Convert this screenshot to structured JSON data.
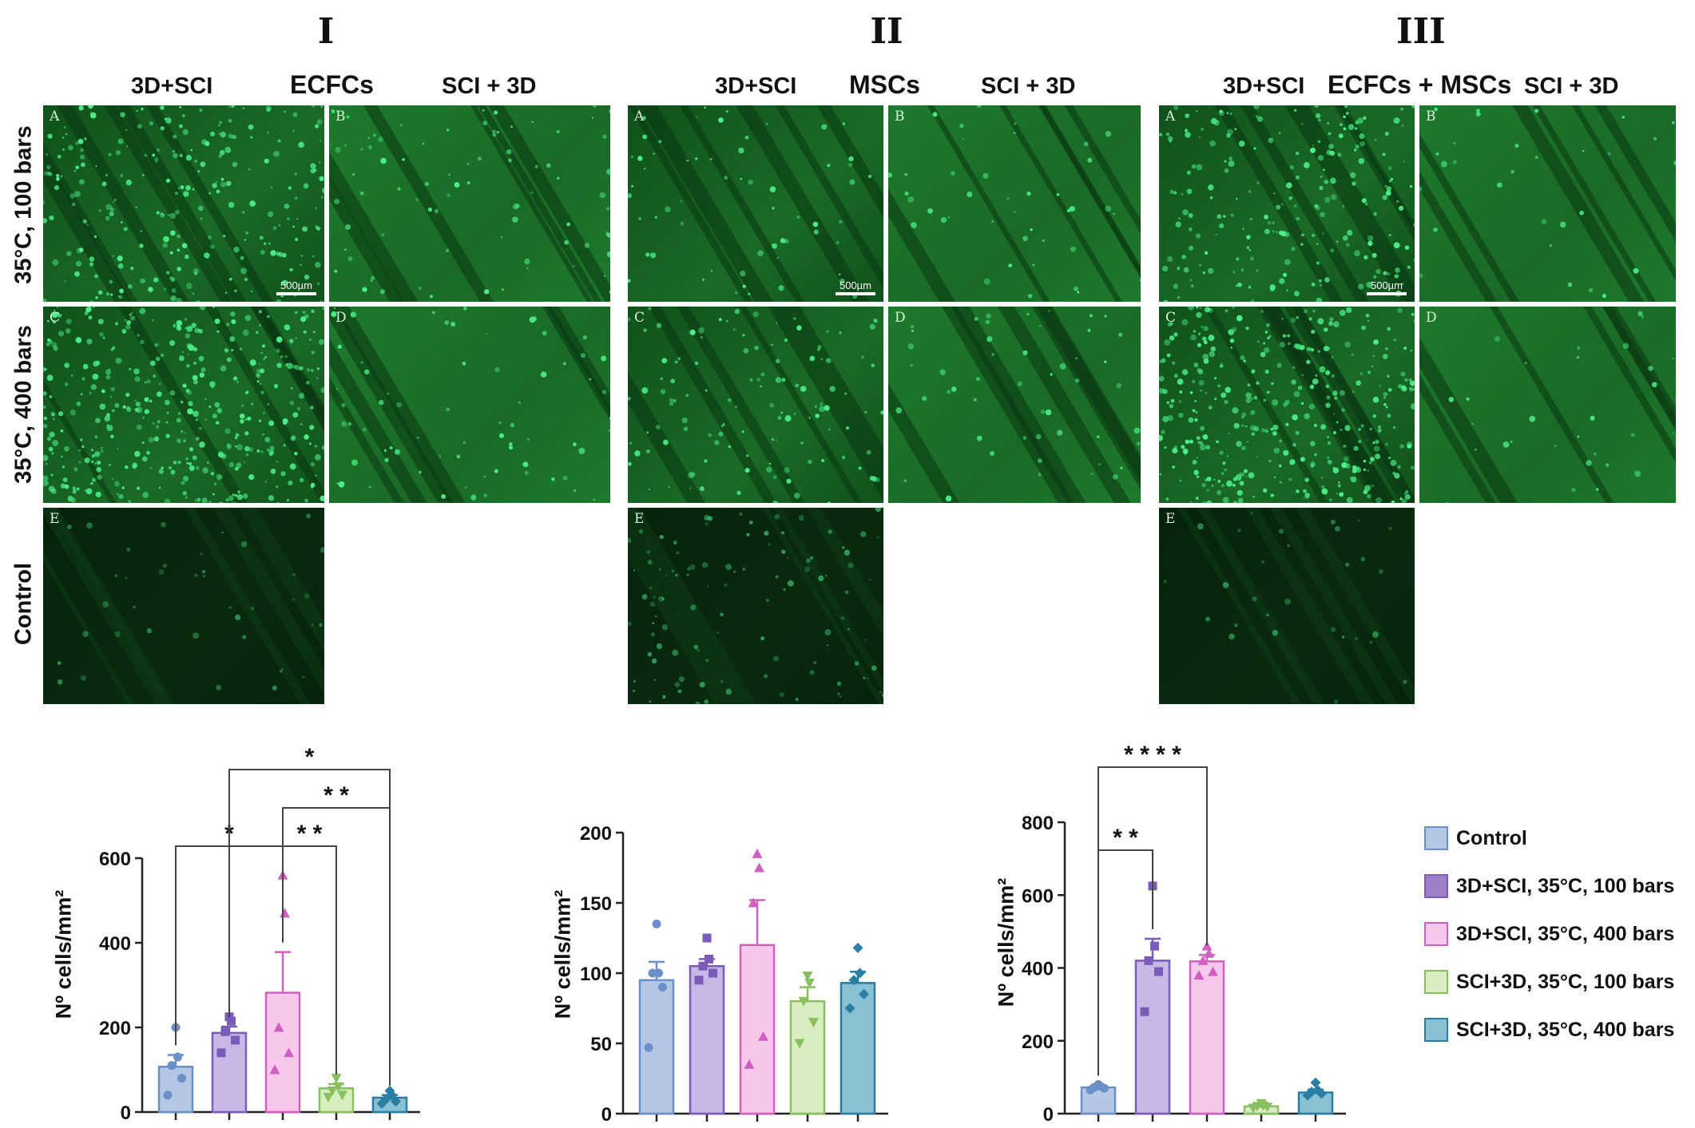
{
  "header": {
    "columns": [
      {
        "roman": "I",
        "cell": "ECFCs",
        "left_label": "3D+SCI",
        "right_label": "SCI + 3D"
      },
      {
        "roman": "II",
        "cell": "MSCs",
        "left_label": "3D+SCI",
        "right_label": "SCI + 3D"
      },
      {
        "roman": "III",
        "cell": "ECFCs + MSCs",
        "left_label": "3D+SCI",
        "right_label": "SCI + 3D"
      }
    ],
    "rows": [
      "35°C, 100 bars",
      "35°C, 400 bars",
      "Control"
    ]
  },
  "panels": {
    "letters": [
      "A",
      "B",
      "C",
      "D",
      "E"
    ],
    "scale_label": "500µm"
  },
  "colors": {
    "control": "#b4c8e6",
    "control_edge": "#6b8fc8",
    "s100": "#c8b8e6",
    "s100_edge": "#7a5cb8",
    "s400": "#f8c8ec",
    "s400_edge": "#d060c0",
    "r100": "#d8eec0",
    "r100_edge": "#88c060",
    "r400": "#88c0d4",
    "r400_edge": "#2a7ea4",
    "micro_bg": "#0c3e14",
    "micro_cell": "#4cf088"
  },
  "legend": [
    {
      "label": "Control",
      "key": "control"
    },
    {
      "label": "3D+SCI, 35°C, 100 bars",
      "key": "s100"
    },
    {
      "label": "3D+SCI, 35°C, 400 bars",
      "key": "s400"
    },
    {
      "label": "SCI+3D, 35°C, 100 bars",
      "key": "r100"
    },
    {
      "label": "SCI+3D, 35°C, 400 bars",
      "key": "r400"
    }
  ],
  "chart_data": [
    {
      "type": "bar",
      "ylabel": "Nº cells/mm²",
      "ylim": [
        0,
        600
      ],
      "yticks": [
        0,
        200,
        400,
        600
      ],
      "groups": [
        "Control",
        "3D+SCI, 35°C, 100 bars",
        "3D+SCI, 35°C, 400 bars",
        "SCI+3D, 35°C, 100 bars",
        "SCI+3D, 35°C, 400 bars"
      ],
      "values": [
        107,
        187,
        282,
        56,
        34
      ],
      "errors": [
        28,
        15,
        96,
        10,
        6
      ],
      "points": [
        [
          200,
          130,
          110,
          80,
          40
        ],
        [
          225,
          215,
          190,
          170,
          140
        ],
        [
          560,
          470,
          200,
          140,
          100
        ],
        [
          80,
          60,
          50,
          40,
          35
        ],
        [
          50,
          40,
          30,
          25,
          20
        ]
      ],
      "significance": [
        {
          "from": 0,
          "to": 2,
          "label": "*",
          "level": 0
        },
        {
          "from": 2,
          "to": 3,
          "label": "* *",
          "level": 0
        },
        {
          "from": 2,
          "to": 4,
          "label": "* *",
          "level": 1
        },
        {
          "from": 1,
          "to": 4,
          "label": "*",
          "level": 2
        }
      ]
    },
    {
      "type": "bar",
      "ylabel": "Nº cells/mm²",
      "ylim": [
        0,
        200
      ],
      "yticks": [
        0,
        50,
        100,
        150,
        200
      ],
      "groups": [
        "Control",
        "3D+SCI, 35°C, 100 bars",
        "3D+SCI, 35°C, 400 bars",
        "SCI+3D, 35°C, 100 bars",
        "SCI+3D, 35°C, 400 bars"
      ],
      "values": [
        95,
        105,
        120,
        80,
        93
      ],
      "errors": [
        13,
        5,
        32,
        10,
        8
      ],
      "points": [
        [
          135,
          100,
          100,
          90,
          47
        ],
        [
          125,
          110,
          105,
          100,
          95
        ],
        [
          185,
          175,
          150,
          55,
          35
        ],
        [
          98,
          93,
          80,
          65,
          50
        ],
        [
          118,
          100,
          95,
          85,
          75
        ]
      ],
      "significance": []
    },
    {
      "type": "bar",
      "ylabel": "Nº cells/mm²",
      "ylim": [
        0,
        800
      ],
      "yticks": [
        0,
        200,
        400,
        600,
        800
      ],
      "groups": [
        "Control",
        "3D+SCI, 35°C, 100 bars",
        "3D+SCI, 35°C, 400 bars",
        "SCI+3D, 35°C, 100 bars",
        "SCI+3D, 35°C, 400 bars"
      ],
      "values": [
        72,
        420,
        418,
        20,
        58
      ],
      "errors": [
        6,
        60,
        18,
        4,
        8
      ],
      "points": [
        [
          80,
          75,
          72,
          70,
          65
        ],
        [
          625,
          460,
          420,
          390,
          280
        ],
        [
          460,
          440,
          420,
          390,
          380
        ],
        [
          28,
          22,
          20,
          18,
          15
        ],
        [
          85,
          65,
          60,
          55,
          50
        ]
      ],
      "significance": [
        {
          "from": 0,
          "to": 1,
          "label": "* *",
          "level": 0
        },
        {
          "from": 0,
          "to": 2,
          "label": "* * * *",
          "level": 1
        }
      ]
    }
  ]
}
